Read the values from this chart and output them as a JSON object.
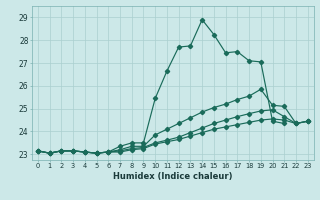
{
  "xlabel": "Humidex (Indice chaleur)",
  "bg_color": "#cce8e8",
  "line_color": "#1a6b5a",
  "grid_color": "#aacfcf",
  "xlim": [
    -0.5,
    23.5
  ],
  "ylim": [
    22.75,
    29.5
  ],
  "xticks": [
    0,
    1,
    2,
    3,
    4,
    5,
    6,
    7,
    8,
    9,
    10,
    11,
    12,
    13,
    14,
    15,
    16,
    17,
    18,
    19,
    20,
    21,
    22,
    23
  ],
  "yticks": [
    23,
    24,
    25,
    26,
    27,
    28,
    29
  ],
  "series1_x": [
    0,
    1,
    2,
    3,
    4,
    5,
    6,
    7,
    8,
    9,
    10,
    11,
    12,
    13,
    14,
    15,
    16,
    17,
    18,
    19,
    20,
    21
  ],
  "series1_y": [
    23.15,
    23.05,
    23.15,
    23.15,
    23.1,
    23.05,
    23.1,
    23.35,
    23.5,
    23.5,
    25.45,
    26.65,
    27.7,
    27.75,
    28.9,
    28.25,
    27.45,
    27.5,
    27.1,
    27.05,
    24.45,
    24.35
  ],
  "series2_x": [
    0,
    1,
    2,
    3,
    4,
    5,
    6,
    7,
    8,
    9,
    10,
    11,
    12,
    13,
    14,
    15,
    16,
    17,
    18,
    19,
    20,
    21,
    22,
    23
  ],
  "series2_y": [
    23.15,
    23.05,
    23.15,
    23.15,
    23.1,
    23.05,
    23.1,
    23.2,
    23.35,
    23.35,
    23.85,
    24.1,
    24.35,
    24.6,
    24.85,
    25.05,
    25.2,
    25.4,
    25.55,
    25.85,
    25.15,
    25.1,
    24.35,
    24.45
  ],
  "series3_x": [
    0,
    1,
    2,
    3,
    4,
    5,
    6,
    7,
    8,
    9,
    10,
    11,
    12,
    13,
    14,
    15,
    16,
    17,
    18,
    19,
    20,
    21,
    22,
    23
  ],
  "series3_y": [
    23.15,
    23.05,
    23.15,
    23.15,
    23.1,
    23.05,
    23.1,
    23.15,
    23.25,
    23.3,
    23.5,
    23.62,
    23.75,
    23.95,
    24.15,
    24.35,
    24.5,
    24.65,
    24.78,
    24.9,
    24.95,
    24.65,
    24.35,
    24.45
  ],
  "series4_x": [
    0,
    1,
    2,
    3,
    4,
    5,
    6,
    7,
    8,
    9,
    10,
    11,
    12,
    13,
    14,
    15,
    16,
    17,
    18,
    19,
    20,
    21,
    22,
    23
  ],
  "series4_y": [
    23.15,
    23.05,
    23.15,
    23.15,
    23.1,
    23.05,
    23.1,
    23.1,
    23.2,
    23.25,
    23.45,
    23.55,
    23.65,
    23.8,
    23.95,
    24.1,
    24.2,
    24.3,
    24.4,
    24.5,
    24.55,
    24.5,
    24.35,
    24.45
  ]
}
